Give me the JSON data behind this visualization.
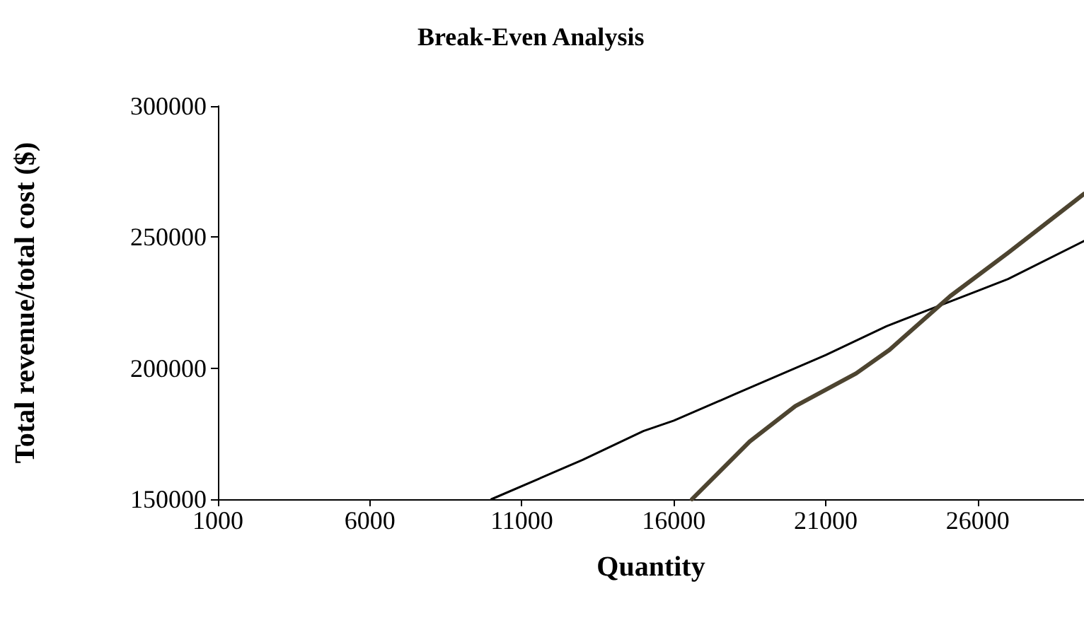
{
  "chart_data": {
    "type": "line",
    "title": "Break-Even Analysis",
    "xlabel": "Quantity",
    "ylabel": "Total revenue/total cost ($)",
    "xlim": [
      1000,
      29500
    ],
    "xticks": [
      1000,
      6000,
      11000,
      16000,
      21000,
      26000
    ],
    "ylim": [
      150000,
      300000
    ],
    "yticks": [
      150000,
      200000,
      250000,
      300000
    ],
    "grid": false,
    "marker": "none",
    "line_style": "solid",
    "series": [
      {
        "color": "#000000",
        "x": [
          10000,
          12000,
          13000,
          15000,
          16000,
          18000,
          19000,
          21000,
          23000,
          24000,
          26000,
          27000,
          29500
        ],
        "values": [
          150000,
          160000,
          165000,
          176000,
          180000,
          190000,
          195000,
          205000,
          216000,
          220500,
          229500,
          234000,
          248500
        ]
      },
      {
        "color": "#4d4430",
        "x": [
          16600,
          18500,
          20000,
          22000,
          23100,
          25100,
          27000,
          29500
        ],
        "values": [
          150000,
          172000,
          185500,
          198000,
          207000,
          227500,
          244000,
          266500
        ]
      }
    ]
  }
}
